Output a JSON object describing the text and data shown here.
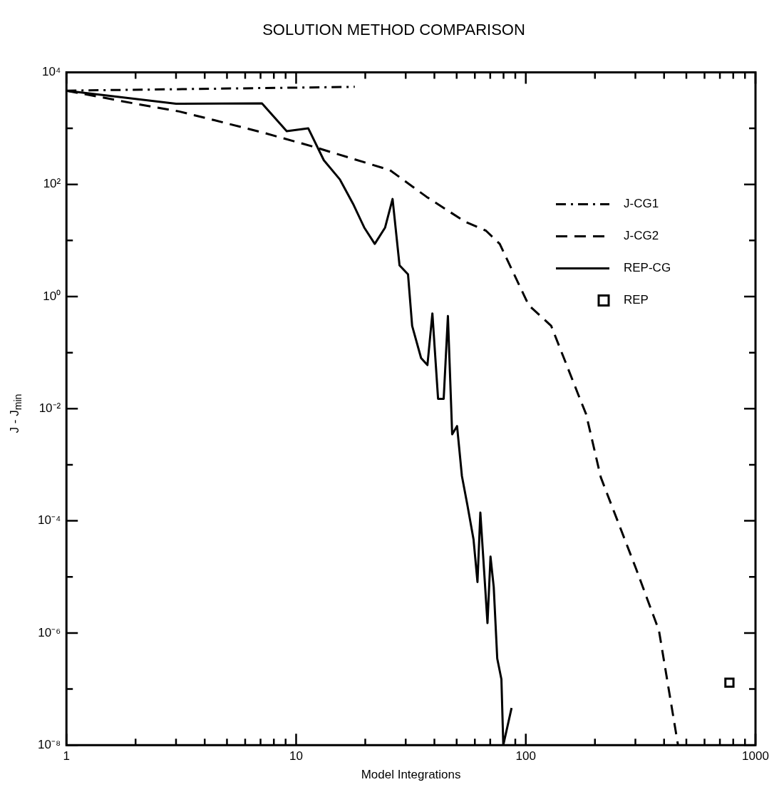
{
  "chart_data": {
    "type": "line",
    "title": "SOLUTION METHOD COMPARISON",
    "xlabel": "Model Integrations",
    "ylabel": "J - J$_{min}$",
    "log": "xy",
    "legend": "top right",
    "marker": "none",
    "xlim": [
      1,
      1000
    ],
    "ylim": [
      1e-08,
      10000
    ],
    "xticks": [
      1,
      {
        "value": 2,
        "label": null
      },
      {
        "value": 3,
        "label": null
      },
      {
        "value": 4,
        "label": null
      },
      {
        "value": 5,
        "label": null
      },
      {
        "value": 6,
        "label": null
      },
      {
        "value": 7,
        "label": null
      },
      {
        "value": 8,
        "label": null
      },
      {
        "value": 9,
        "label": null
      },
      10,
      {
        "value": 20,
        "label": null
      },
      {
        "value": 30,
        "label": null
      },
      {
        "value": 40,
        "label": null
      },
      {
        "value": 50,
        "label": null
      },
      {
        "value": 60,
        "label": null
      },
      {
        "value": 70,
        "label": null
      },
      {
        "value": 80,
        "label": null
      },
      {
        "value": 90,
        "label": null
      },
      100,
      {
        "value": 200,
        "label": null
      },
      {
        "value": 300,
        "label": null
      },
      {
        "value": 400,
        "label": null
      },
      {
        "value": 500,
        "label": null
      },
      {
        "value": 600,
        "label": null
      },
      {
        "value": 700,
        "label": null
      },
      {
        "value": 800,
        "label": null
      },
      {
        "value": 900,
        "label": null
      },
      1000
    ],
    "yticks": [
      {
        "value": 1e-08,
        "label": "10⁻⁸"
      },
      {
        "value": 1e-07,
        "label": null
      },
      {
        "value": 1e-06,
        "label": "10⁻⁶"
      },
      {
        "value": 1e-05,
        "label": null
      },
      {
        "value": 0.0001,
        "label": "10⁻⁴"
      },
      {
        "value": 0.001,
        "label": null
      },
      {
        "value": 0.01,
        "label": "10⁻²"
      },
      {
        "value": 0.1,
        "label": null
      },
      {
        "value": 1,
        "label": "10⁰"
      },
      {
        "value": 10,
        "label": null
      },
      {
        "value": 100,
        "label": "10²"
      },
      {
        "value": 1000,
        "label": null
      },
      {
        "value": 10000,
        "label": "10⁴"
      }
    ],
    "series": [
      {
        "name": "J-CG1",
        "color": "#000000",
        "line_style": "dashdot",
        "x": [
          1,
          18
        ],
        "values": [
          4700,
          5500
        ]
      },
      {
        "name": "J-CG2",
        "color": "#000000",
        "line_style": "dashed",
        "x": [
          1,
          2,
          3.1,
          4.4,
          7.1,
          11.8,
          17.5,
          25.6,
          37,
          54,
          67,
          77,
          103,
          129,
          170,
          183,
          212,
          302,
          380,
          460
        ],
        "values": [
          4700,
          2750,
          2000,
          1400,
          850,
          475,
          290,
          180,
          60,
          22,
          15,
          8.7,
          0.7,
          0.3,
          0.017,
          0.008,
          0.0006,
          1.4e-05,
          1.1e-06,
          1e-08
        ]
      },
      {
        "name": "REP-CG",
        "color": "#000000",
        "line_style": "solid",
        "x": [
          1,
          3,
          7.1,
          9.1,
          11.3,
          13.2,
          15.5,
          17.7,
          19.8,
          22,
          24.4,
          26.3,
          28.2,
          30.7,
          32,
          35,
          37.3,
          39.2,
          41.5,
          43.9,
          45.8,
          47.8,
          50.2,
          52.7,
          55.7,
          59.2,
          61.6,
          63.4,
          68.1,
          70.2,
          72.5,
          75.1,
          78.3,
          79.8,
          86.7
        ],
        "values": [
          4700,
          2750,
          2800,
          890,
          1000,
          270,
          123,
          45,
          17,
          8.7,
          17,
          55,
          3.6,
          2.5,
          0.3,
          0.08,
          0.06,
          0.5,
          0.015,
          0.015,
          0.45,
          0.0035,
          0.0049,
          0.00063,
          0.00019,
          4.7e-05,
          8.1e-06,
          0.00014,
          1.5e-06,
          2.3e-05,
          6.6e-06,
          3.5e-07,
          1.5e-07,
          1e-08,
          4.6e-08
        ]
      },
      {
        "name": "REP",
        "color": "#000000",
        "type": "scatter",
        "marker": "square",
        "x": [
          770
        ],
        "values": [
          1.3e-07
        ]
      }
    ]
  }
}
